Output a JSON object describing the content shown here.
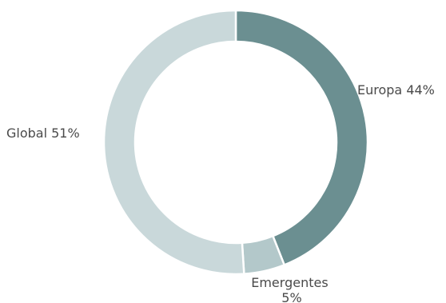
{
  "chart_data": {
    "type": "pie",
    "variant": "donut",
    "slices": [
      {
        "label": "Europa 44%",
        "value": 44,
        "color": "#6b8f91"
      },
      {
        "label": "Emergentes 5%",
        "value": 5,
        "color": "#b3c8ca"
      },
      {
        "label": "Global 51%",
        "value": 51,
        "color": "#c9d8da"
      }
    ],
    "title": "",
    "legend": "none",
    "start_angle_deg": 0,
    "direction": "clockwise"
  }
}
